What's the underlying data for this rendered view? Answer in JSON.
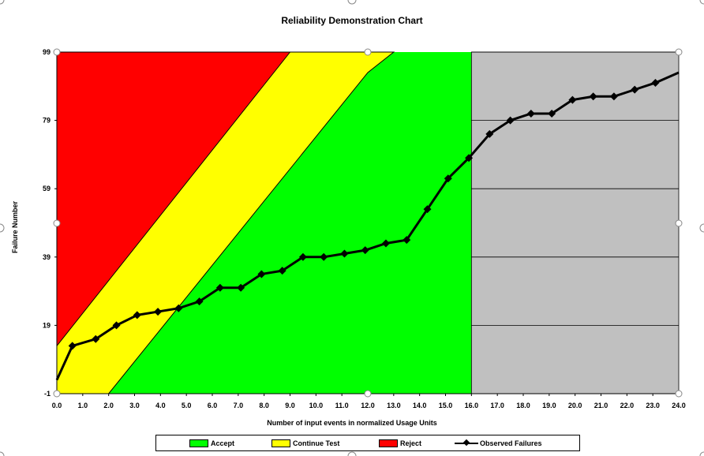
{
  "chart_data": {
    "type": "line",
    "title": "Reliability Demonstration Chart",
    "xlabel": "Number of input events in normalized Usage Units",
    "ylabel": "Failure Number",
    "xlim": [
      0,
      24
    ],
    "ylim": [
      -1,
      99
    ],
    "x_ticks": [
      "0.0",
      "1.0",
      "2.0",
      "3.0",
      "4.0",
      "5.0",
      "6.0",
      "7.0",
      "8.0",
      "9.0",
      "10.0",
      "11.0",
      "12.0",
      "13.0",
      "14.0",
      "15.0",
      "16.0",
      "17.0",
      "18.0",
      "19.0",
      "20.0",
      "21.0",
      "22.0",
      "23.0",
      "24.0"
    ],
    "y_ticks": [
      "-1",
      "19",
      "39",
      "59",
      "79",
      "99"
    ],
    "grid": "horizontal gridlines in the gray region (x ≥ 16)",
    "legend_position": "bottom",
    "regions": [
      {
        "name": "Accept",
        "color": "#00ff00"
      },
      {
        "name": "Continue Test",
        "color": "#ffff00"
      },
      {
        "name": "Reject",
        "color": "#ff0000"
      }
    ],
    "reject_boundary": [
      [
        0,
        13
      ],
      [
        9,
        99
      ]
    ],
    "accept_boundary": [
      [
        0,
        -1
      ],
      [
        2,
        -1
      ],
      [
        12,
        93
      ],
      [
        13,
        99
      ]
    ],
    "truncation_x": 16,
    "truncation_color": "#c0c0c0",
    "series": [
      {
        "name": "Observed Failures",
        "color": "#000000",
        "x": [
          0.0,
          0.6,
          1.5,
          2.3,
          3.1,
          3.9,
          4.7,
          5.5,
          6.3,
          7.1,
          7.9,
          8.7,
          9.5,
          10.3,
          11.1,
          11.9,
          12.7,
          13.5,
          14.3,
          15.1,
          15.9,
          16.7,
          17.5,
          18.3,
          19.1,
          19.9,
          20.7,
          21.5,
          22.3,
          23.1,
          24.0
        ],
        "y": [
          3,
          13,
          15,
          19,
          22,
          23,
          24,
          26,
          30,
          30,
          34,
          35,
          39,
          39,
          40,
          41,
          43,
          44,
          53,
          62,
          68,
          75,
          79,
          81,
          81,
          85,
          86,
          86,
          88,
          90,
          93
        ]
      }
    ]
  }
}
